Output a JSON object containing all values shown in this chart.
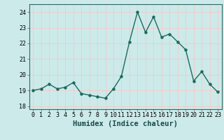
{
  "x": [
    0,
    1,
    2,
    3,
    4,
    5,
    6,
    7,
    8,
    9,
    10,
    11,
    12,
    13,
    14,
    15,
    16,
    17,
    18,
    19,
    20,
    21,
    22,
    23
  ],
  "y": [
    19.0,
    19.1,
    19.4,
    19.1,
    19.2,
    19.5,
    18.8,
    18.7,
    18.6,
    18.5,
    19.1,
    19.9,
    22.1,
    24.0,
    22.7,
    23.7,
    22.4,
    22.6,
    22.1,
    21.6,
    19.6,
    20.2,
    19.4,
    18.9
  ],
  "line_color": "#1a6b5e",
  "marker": "o",
  "marker_size": 2.2,
  "linewidth": 1.0,
  "xlabel": "Humidex (Indice chaleur)",
  "xlim": [
    -0.5,
    23.5
  ],
  "ylim": [
    17.8,
    24.5
  ],
  "yticks": [
    18,
    19,
    20,
    21,
    22,
    23,
    24
  ],
  "xticks": [
    0,
    1,
    2,
    3,
    4,
    5,
    6,
    7,
    8,
    9,
    10,
    11,
    12,
    13,
    14,
    15,
    16,
    17,
    18,
    19,
    20,
    21,
    22,
    23
  ],
  "bg_color": "#cceaea",
  "grid_color": "#f5c8c8",
  "tick_label_fontsize": 6.0,
  "xlabel_fontsize": 7.5
}
